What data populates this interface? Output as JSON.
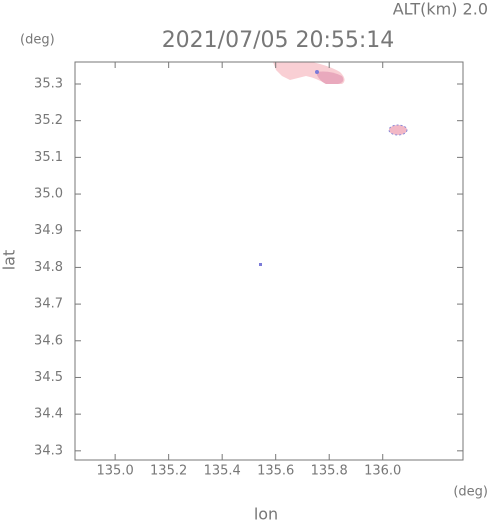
{
  "chart_data": {
    "type": "map",
    "title": "2021/07/05 20:55:14",
    "altitude_label": "ALT(km) 2.0",
    "y_unit": "(deg)",
    "x_unit": "(deg)",
    "xlabel": "lon",
    "ylabel": "lat",
    "xlim": [
      134.85,
      136.3
    ],
    "xticks": [
      {
        "value": 135.0,
        "label": "135.0"
      },
      135.2,
      135.4,
      135.6,
      135.8,
      {
        "value": 136.0,
        "label": "136.0"
      }
    ],
    "ylim": [
      34.275,
      35.36
    ],
    "yticks": [
      35.3,
      35.2,
      35.1,
      {
        "value": 35.0,
        "label": "35.0"
      },
      34.9,
      34.8,
      34.7,
      34.6,
      34.5,
      34.4,
      34.3
    ],
    "color": "#777777"
  }
}
